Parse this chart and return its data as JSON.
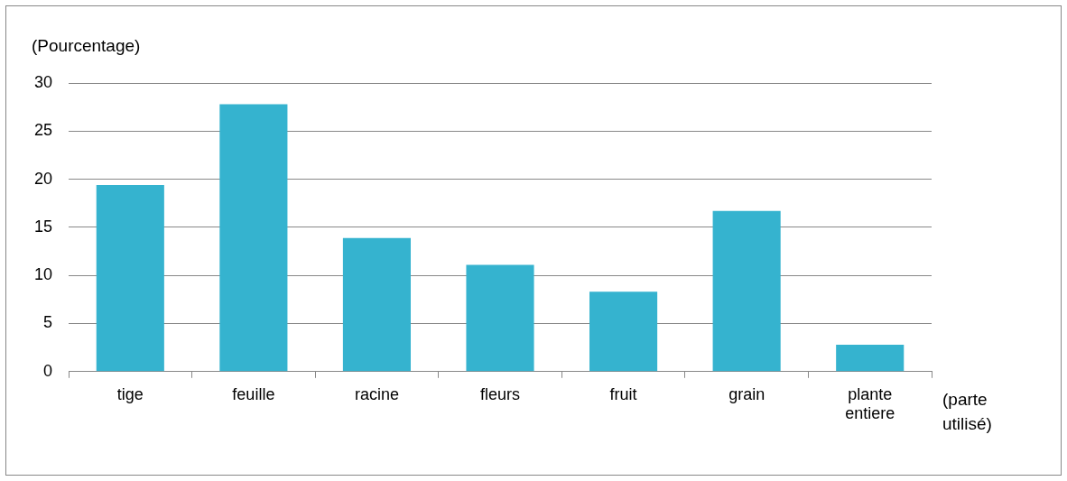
{
  "chart_data": {
    "type": "bar",
    "ylabel": "(Pourcentage)",
    "xlabel": "(parte utilisé)",
    "categories": [
      "tige",
      "feuille",
      "racine",
      "fleurs",
      "fruit",
      "grain",
      "plante entiere"
    ],
    "values": [
      19.4,
      27.8,
      13.9,
      11.1,
      8.3,
      16.7,
      2.8
    ],
    "color": "#35b3cf",
    "ylim": [
      0,
      30
    ],
    "yticks": [
      0,
      5,
      10,
      15,
      20,
      25,
      30
    ],
    "grid": "y",
    "legend": false
  }
}
